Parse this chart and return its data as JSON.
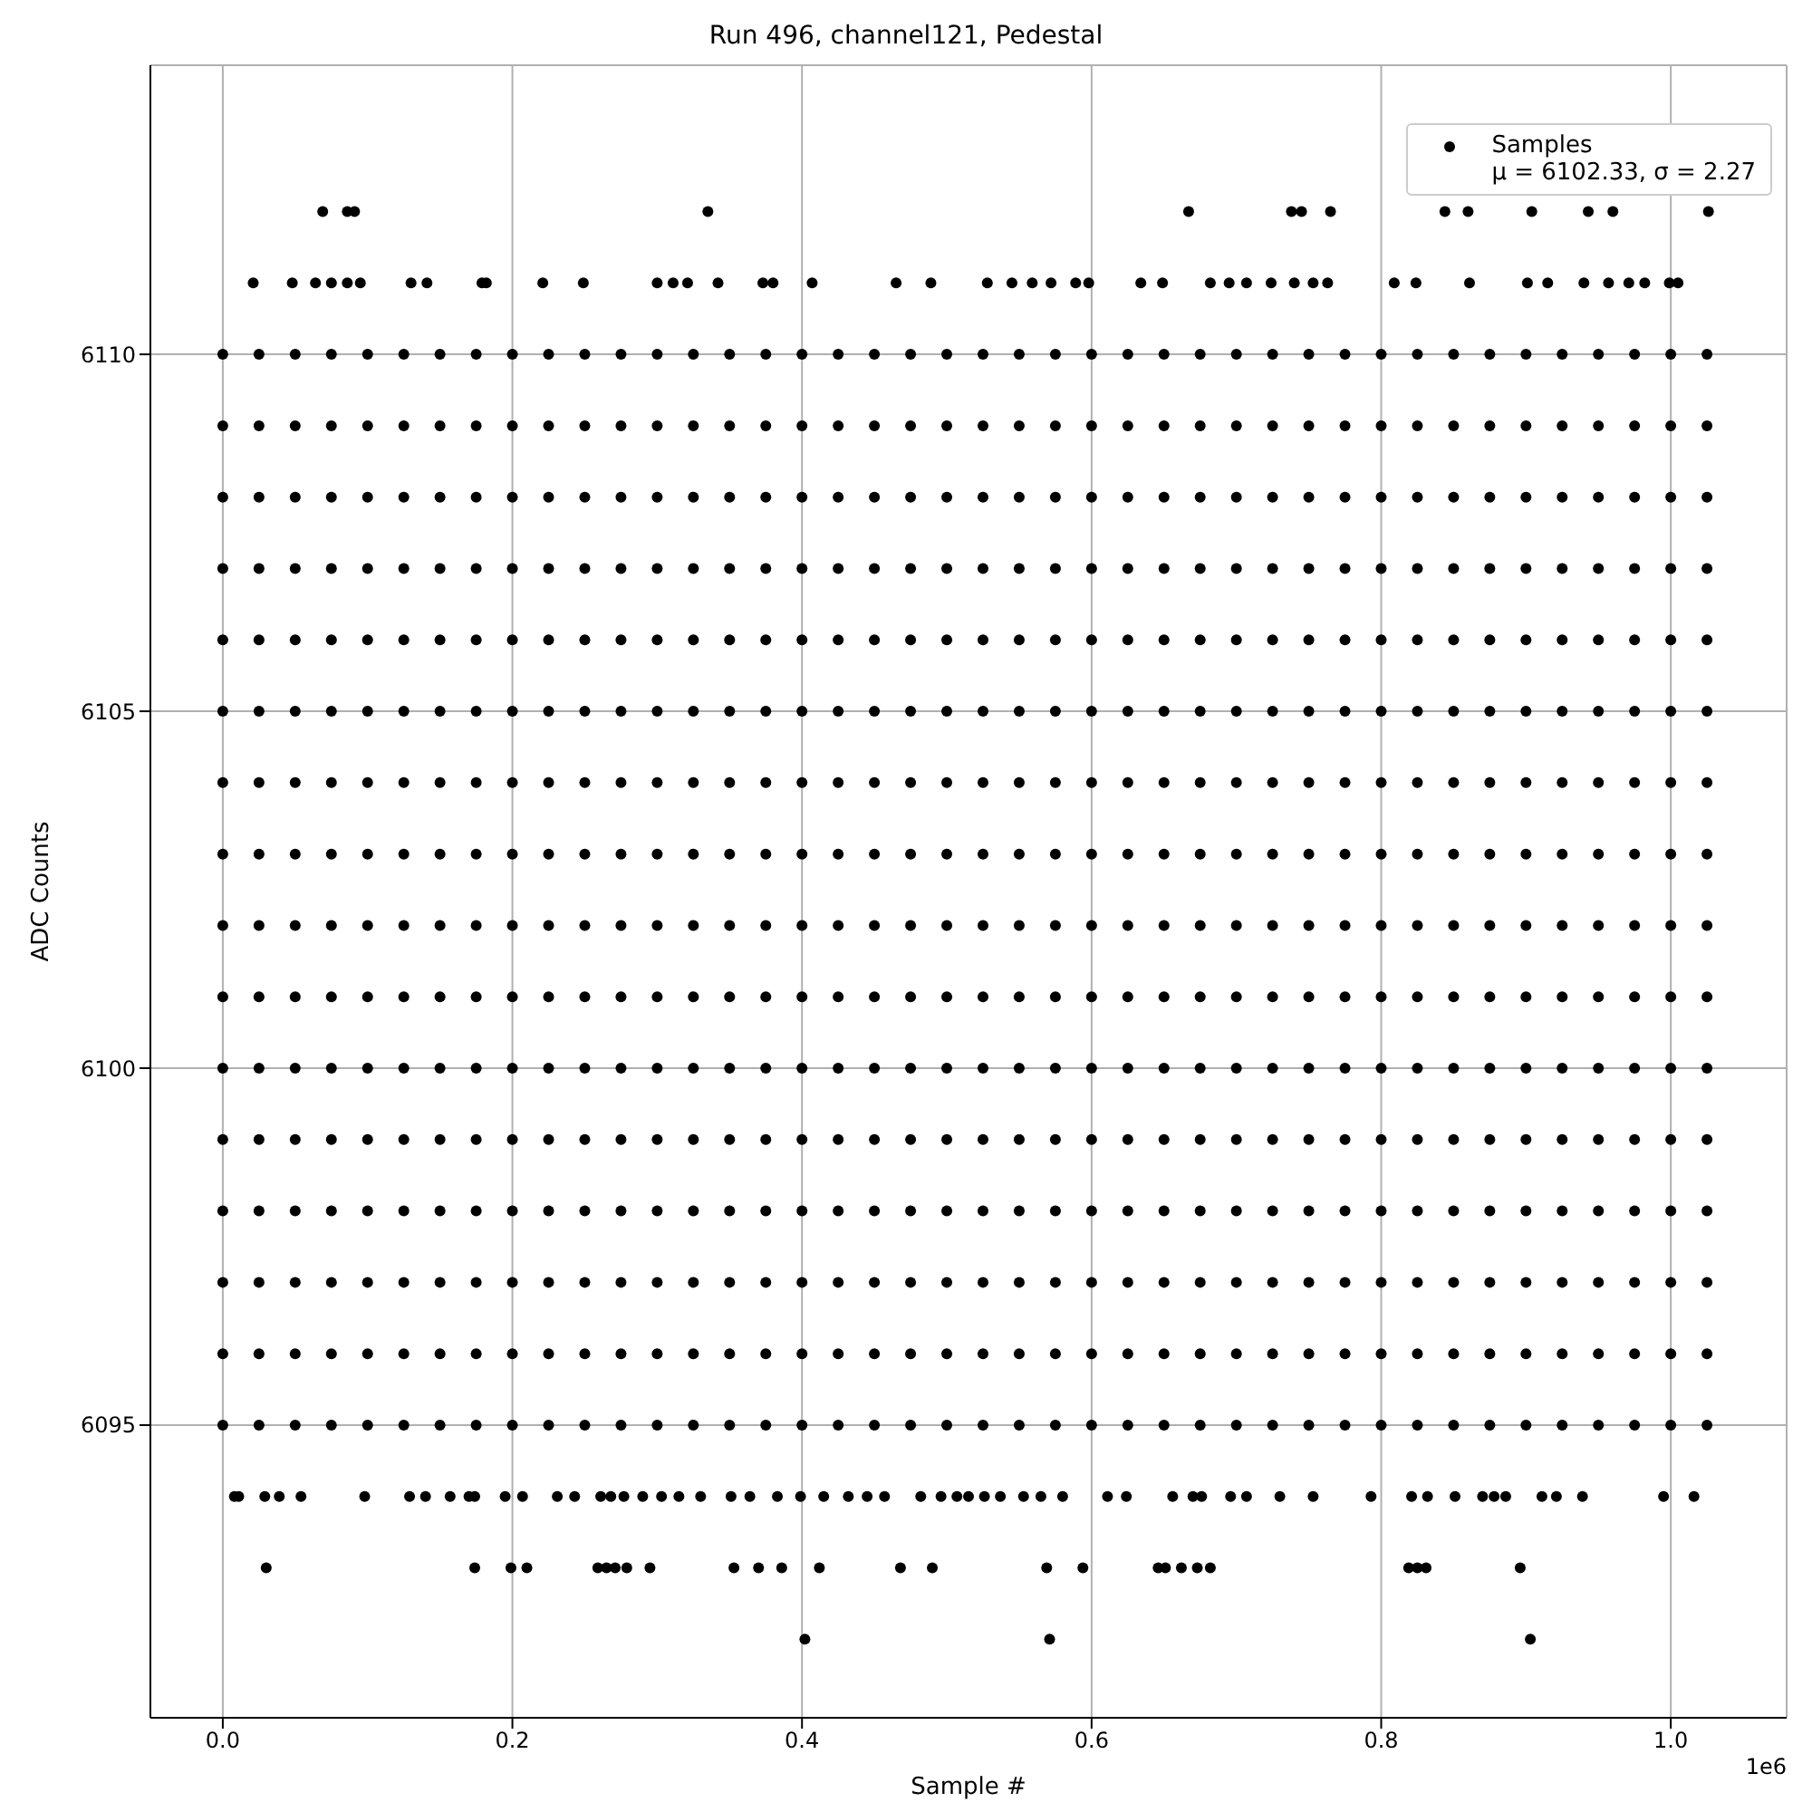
{
  "chart_data": {
    "type": "scatter",
    "title": "Run 496, channel121, Pedestal",
    "xlabel": "Sample #",
    "ylabel": "ADC Counts",
    "annotations": [
      "1e6"
    ],
    "x": [
      0,
      0.025,
      0.05,
      0.075,
      0.1,
      0.125,
      0.15,
      0.175,
      0.2,
      0.225,
      0.25,
      0.275,
      0.3,
      0.325,
      0.35,
      0.375,
      0.4,
      0.425,
      0.45,
      0.475,
      0.5,
      0.525,
      0.55,
      0.575,
      0.6,
      0.625,
      0.65,
      0.675,
      0.7,
      0.725,
      0.75,
      0.775,
      0.8,
      0.825,
      0.85,
      0.875,
      0.9,
      0.925,
      0.95,
      0.975,
      1.0,
      1.025
    ],
    "xlim": [
      -0.05,
      1.08
    ],
    "xticks": [
      {
        "value": 0,
        "label": "0.0"
      },
      0.2,
      0.4,
      0.6,
      0.8,
      {
        "value": 1,
        "label": "1.0"
      }
    ],
    "ylim": [
      6090.9,
      6114.05
    ],
    "yticks": [
      6095,
      6100,
      6105,
      6110
    ],
    "grid": true,
    "legend": "top right",
    "marker": "circle",
    "series": [
      {
        "name": "Samples\nμ = 6102.33, σ = 2.27",
        "color": "#000000",
        "values": [
          6100,
          6100,
          6100,
          6100,
          6100,
          6100,
          6100,
          6100,
          6100,
          6100,
          6100,
          6100,
          6100,
          6100,
          6100,
          6100,
          6100,
          6100,
          6100,
          6100,
          6100,
          6100,
          6100,
          6100,
          6100,
          6100,
          6100,
          6100,
          6100,
          6100,
          6100,
          6100,
          6100,
          6100,
          6100,
          6100,
          6100,
          6100,
          6100,
          6100,
          6100,
          6100
        ]
      },
      {
        "color": "#000000",
        "values": [
          6095,
          6095,
          6095,
          6095,
          6095,
          6095,
          6095,
          6095,
          6095,
          6095,
          6095,
          6095,
          6095,
          6095,
          6095,
          6095,
          6095,
          6095,
          6095,
          6095,
          6095,
          6095,
          6095,
          6095,
          6095,
          6095,
          6095,
          6095,
          6095,
          6095,
          6095,
          6095,
          6095,
          6095,
          6095,
          6095,
          6095,
          6095,
          6095,
          6095,
          6095,
          6095
        ]
      },
      {
        "color": "#000000",
        "values": [
          6096,
          6096,
          6096,
          6096,
          6096,
          6096,
          6096,
          6096,
          6096,
          6096,
          6096,
          6096,
          6096,
          6096,
          6096,
          6096,
          6096,
          6096,
          6096,
          6096,
          6096,
          6096,
          6096,
          6096,
          6096,
          6096,
          6096,
          6096,
          6096,
          6096,
          6096,
          6096,
          6096,
          6096,
          6096,
          6096,
          6096,
          6096,
          6096,
          6096,
          6096,
          6096
        ]
      },
      {
        "color": "#000000",
        "values": [
          6097,
          6097,
          6097,
          6097,
          6097,
          6097,
          6097,
          6097,
          6097,
          6097,
          6097,
          6097,
          6097,
          6097,
          6097,
          6097,
          6097,
          6097,
          6097,
          6097,
          6097,
          6097,
          6097,
          6097,
          6097,
          6097,
          6097,
          6097,
          6097,
          6097,
          6097,
          6097,
          6097,
          6097,
          6097,
          6097,
          6097,
          6097,
          6097,
          6097,
          6097,
          6097
        ]
      },
      {
        "color": "#000000",
        "values": [
          6098,
          6098,
          6098,
          6098,
          6098,
          6098,
          6098,
          6098,
          6098,
          6098,
          6098,
          6098,
          6098,
          6098,
          6098,
          6098,
          6098,
          6098,
          6098,
          6098,
          6098,
          6098,
          6098,
          6098,
          6098,
          6098,
          6098,
          6098,
          6098,
          6098,
          6098,
          6098,
          6098,
          6098,
          6098,
          6098,
          6098,
          6098,
          6098,
          6098,
          6098,
          6098
        ]
      },
      {
        "color": "#000000",
        "values": [
          6099,
          6099,
          6099,
          6099,
          6099,
          6099,
          6099,
          6099,
          6099,
          6099,
          6099,
          6099,
          6099,
          6099,
          6099,
          6099,
          6099,
          6099,
          6099,
          6099,
          6099,
          6099,
          6099,
          6099,
          6099,
          6099,
          6099,
          6099,
          6099,
          6099,
          6099,
          6099,
          6099,
          6099,
          6099,
          6099,
          6099,
          6099,
          6099,
          6099,
          6099,
          6099
        ]
      },
      {
        "color": "#000000",
        "values": [
          6101,
          6101,
          6101,
          6101,
          6101,
          6101,
          6101,
          6101,
          6101,
          6101,
          6101,
          6101,
          6101,
          6101,
          6101,
          6101,
          6101,
          6101,
          6101,
          6101,
          6101,
          6101,
          6101,
          6101,
          6101,
          6101,
          6101,
          6101,
          6101,
          6101,
          6101,
          6101,
          6101,
          6101,
          6101,
          6101,
          6101,
          6101,
          6101,
          6101,
          6101,
          6101
        ]
      },
      {
        "color": "#000000",
        "values": [
          6102,
          6102,
          6102,
          6102,
          6102,
          6102,
          6102,
          6102,
          6102,
          6102,
          6102,
          6102,
          6102,
          6102,
          6102,
          6102,
          6102,
          6102,
          6102,
          6102,
          6102,
          6102,
          6102,
          6102,
          6102,
          6102,
          6102,
          6102,
          6102,
          6102,
          6102,
          6102,
          6102,
          6102,
          6102,
          6102,
          6102,
          6102,
          6102,
          6102,
          6102,
          6102
        ]
      },
      {
        "color": "#000000",
        "values": [
          6103,
          6103,
          6103,
          6103,
          6103,
          6103,
          6103,
          6103,
          6103,
          6103,
          6103,
          6103,
          6103,
          6103,
          6103,
          6103,
          6103,
          6103,
          6103,
          6103,
          6103,
          6103,
          6103,
          6103,
          6103,
          6103,
          6103,
          6103,
          6103,
          6103,
          6103,
          6103,
          6103,
          6103,
          6103,
          6103,
          6103,
          6103,
          6103,
          6103,
          6103,
          6103
        ]
      },
      {
        "color": "#000000",
        "values": [
          6104,
          6104,
          6104,
          6104,
          6104,
          6104,
          6104,
          6104,
          6104,
          6104,
          6104,
          6104,
          6104,
          6104,
          6104,
          6104,
          6104,
          6104,
          6104,
          6104,
          6104,
          6104,
          6104,
          6104,
          6104,
          6104,
          6104,
          6104,
          6104,
          6104,
          6104,
          6104,
          6104,
          6104,
          6104,
          6104,
          6104,
          6104,
          6104,
          6104,
          6104,
          6104
        ]
      },
      {
        "color": "#000000",
        "values": [
          6105,
          6105,
          6105,
          6105,
          6105,
          6105,
          6105,
          6105,
          6105,
          6105,
          6105,
          6105,
          6105,
          6105,
          6105,
          6105,
          6105,
          6105,
          6105,
          6105,
          6105,
          6105,
          6105,
          6105,
          6105,
          6105,
          6105,
          6105,
          6105,
          6105,
          6105,
          6105,
          6105,
          6105,
          6105,
          6105,
          6105,
          6105,
          6105,
          6105,
          6105,
          6105
        ]
      },
      {
        "color": "#000000",
        "values": [
          6106,
          6106,
          6106,
          6106,
          6106,
          6106,
          6106,
          6106,
          6106,
          6106,
          6106,
          6106,
          6106,
          6106,
          6106,
          6106,
          6106,
          6106,
          6106,
          6106,
          6106,
          6106,
          6106,
          6106,
          6106,
          6106,
          6106,
          6106,
          6106,
          6106,
          6106,
          6106,
          6106,
          6106,
          6106,
          6106,
          6106,
          6106,
          6106,
          6106,
          6106,
          6106
        ]
      },
      {
        "color": "#000000",
        "values": [
          6107,
          6107,
          6107,
          6107,
          6107,
          6107,
          6107,
          6107,
          6107,
          6107,
          6107,
          6107,
          6107,
          6107,
          6107,
          6107,
          6107,
          6107,
          6107,
          6107,
          6107,
          6107,
          6107,
          6107,
          6107,
          6107,
          6107,
          6107,
          6107,
          6107,
          6107,
          6107,
          6107,
          6107,
          6107,
          6107,
          6107,
          6107,
          6107,
          6107,
          6107,
          6107
        ]
      },
      {
        "color": "#000000",
        "values": [
          6108,
          6108,
          6108,
          6108,
          6108,
          6108,
          6108,
          6108,
          6108,
          6108,
          6108,
          6108,
          6108,
          6108,
          6108,
          6108,
          6108,
          6108,
          6108,
          6108,
          6108,
          6108,
          6108,
          6108,
          6108,
          6108,
          6108,
          6108,
          6108,
          6108,
          6108,
          6108,
          6108,
          6108,
          6108,
          6108,
          6108,
          6108,
          6108,
          6108,
          6108,
          6108
        ]
      },
      {
        "color": "#000000",
        "values": [
          6109,
          6109,
          6109,
          6109,
          6109,
          6109,
          6109,
          6109,
          6109,
          6109,
          6109,
          6109,
          6109,
          6109,
          6109,
          6109,
          6109,
          6109,
          6109,
          6109,
          6109,
          6109,
          6109,
          6109,
          6109,
          6109,
          6109,
          6109,
          6109,
          6109,
          6109,
          6109,
          6109,
          6109,
          6109,
          6109,
          6109,
          6109,
          6109,
          6109,
          6109,
          6109
        ]
      },
      {
        "color": "#000000",
        "values": [
          6110,
          6110,
          6110,
          6110,
          6110,
          6110,
          6110,
          6110,
          6110,
          6110,
          6110,
          6110,
          6110,
          6110,
          6110,
          6110,
          6110,
          6110,
          6110,
          6110,
          6110,
          6110,
          6110,
          6110,
          6110,
          6110,
          6110,
          6110,
          6110,
          6110,
          6110,
          6110,
          6110,
          6110,
          6110,
          6110,
          6110,
          6110,
          6110,
          6110,
          6110,
          6110
        ]
      },
      {
        "color": "#000000",
        "x": [
          0.069,
          0.086,
          0.091,
          0.335,
          0.667,
          0.738,
          0.745,
          0.765,
          0.844,
          0.86,
          0.904,
          0.943,
          0.96,
          1.026
        ],
        "values": [
          6112,
          6112,
          6112,
          6112,
          6112,
          6112,
          6112,
          6112,
          6112,
          6112,
          6112,
          6112,
          6112,
          6112
        ]
      },
      {
        "color": "#000000",
        "x": [
          0.021,
          0.048,
          0.064,
          0.075,
          0.086,
          0.095,
          0.13,
          0.141,
          0.179,
          0.182,
          0.221,
          0.249,
          0.3,
          0.311,
          0.321,
          0.342,
          0.373,
          0.38,
          0.407,
          0.465,
          0.489,
          0.528,
          0.545,
          0.559,
          0.572,
          0.589,
          0.598,
          0.634,
          0.649,
          0.682,
          0.695,
          0.707,
          0.724,
          0.74,
          0.753,
          0.763,
          0.809,
          0.824,
          0.861,
          0.901,
          0.915,
          0.94,
          0.957,
          0.971,
          0.982,
          0.999,
          1.005
        ],
        "values": [
          6111,
          6111,
          6111,
          6111,
          6111,
          6111,
          6111,
          6111,
          6111,
          6111,
          6111,
          6111,
          6111,
          6111,
          6111,
          6111,
          6111,
          6111,
          6111,
          6111,
          6111,
          6111,
          6111,
          6111,
          6111,
          6111,
          6111,
          6111,
          6111,
          6111,
          6111,
          6111,
          6111,
          6111,
          6111,
          6111,
          6111,
          6111,
          6111,
          6111,
          6111,
          6111,
          6111,
          6111,
          6111,
          6111,
          6111
        ]
      },
      {
        "color": "#000000",
        "x": [
          0.008,
          0.011,
          0.029,
          0.039,
          0.054,
          0.098,
          0.129,
          0.14,
          0.157,
          0.17,
          0.174,
          0.195,
          0.207,
          0.231,
          0.243,
          0.261,
          0.268,
          0.277,
          0.29,
          0.303,
          0.315,
          0.33,
          0.351,
          0.364,
          0.383,
          0.399,
          0.415,
          0.432,
          0.445,
          0.457,
          0.482,
          0.496,
          0.507,
          0.515,
          0.526,
          0.537,
          0.553,
          0.565,
          0.58,
          0.611,
          0.624,
          0.656,
          0.67,
          0.676,
          0.696,
          0.707,
          0.73,
          0.753,
          0.793,
          0.821,
          0.832,
          0.851,
          0.87,
          0.878,
          0.886,
          0.911,
          0.921,
          0.939,
          0.995,
          1.016
        ],
        "values": [
          6094,
          6094,
          6094,
          6094,
          6094,
          6094,
          6094,
          6094,
          6094,
          6094,
          6094,
          6094,
          6094,
          6094,
          6094,
          6094,
          6094,
          6094,
          6094,
          6094,
          6094,
          6094,
          6094,
          6094,
          6094,
          6094,
          6094,
          6094,
          6094,
          6094,
          6094,
          6094,
          6094,
          6094,
          6094,
          6094,
          6094,
          6094,
          6094,
          6094,
          6094,
          6094,
          6094,
          6094,
          6094,
          6094,
          6094,
          6094,
          6094,
          6094,
          6094,
          6094,
          6094,
          6094,
          6094,
          6094,
          6094,
          6094,
          6094,
          6094
        ]
      },
      {
        "color": "#000000",
        "x": [
          0.03,
          0.174,
          0.199,
          0.21,
          0.259,
          0.265,
          0.271,
          0.279,
          0.295,
          0.353,
          0.37,
          0.386,
          0.412,
          0.468,
          0.49,
          0.569,
          0.594,
          0.646,
          0.651,
          0.662,
          0.673,
          0.682,
          0.819,
          0.825,
          0.831,
          0.896
        ],
        "values": [
          6093,
          6093,
          6093,
          6093,
          6093,
          6093,
          6093,
          6093,
          6093,
          6093,
          6093,
          6093,
          6093,
          6093,
          6093,
          6093,
          6093,
          6093,
          6093,
          6093,
          6093,
          6093,
          6093,
          6093,
          6093,
          6093
        ]
      },
      {
        "color": "#000000",
        "x": [
          0.402,
          0.571,
          0.903
        ],
        "values": [
          6092,
          6092,
          6092
        ]
      }
    ]
  }
}
